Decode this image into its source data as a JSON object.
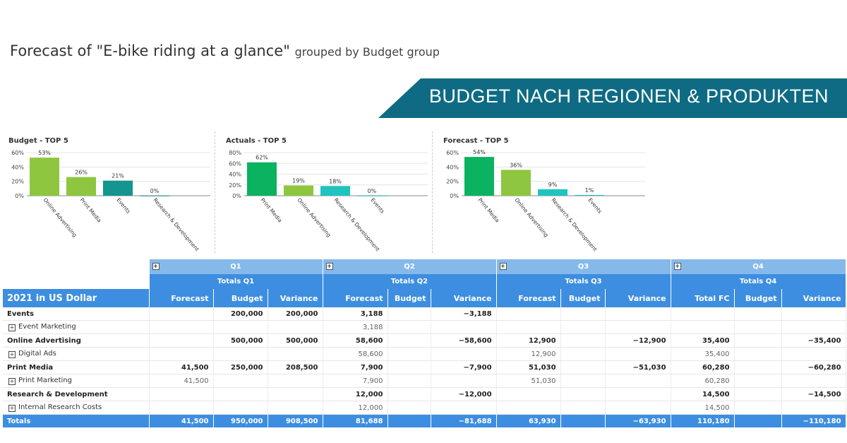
{
  "title": {
    "main": "Forecast of \"E-bike riding at a glance\"",
    "sub": "grouped by Budget group"
  },
  "banner": "BUDGET NACH REGIONEN & PRODUKTEN",
  "chart_data": [
    {
      "type": "bar",
      "title": "Budget - TOP 5",
      "ylim": [
        0,
        60
      ],
      "yticks": [
        "0%",
        "20%",
        "40%",
        "60%"
      ],
      "categories": [
        "Online Advertising",
        "Print Media",
        "Events",
        "Research & Development"
      ],
      "values": [
        53,
        26,
        21,
        0
      ],
      "labels": [
        "53%",
        "26%",
        "21%",
        "0%"
      ],
      "colors": [
        "#8ec63f",
        "#8ec63f",
        "#14958f",
        "#14958f"
      ]
    },
    {
      "type": "bar",
      "title": "Actuals - TOP 5",
      "ylim": [
        0,
        80
      ],
      "yticks": [
        "0%",
        "20%",
        "40%",
        "60%",
        "80%"
      ],
      "categories": [
        "Print Media",
        "Online Advertising",
        "Research & Development",
        "Events"
      ],
      "values": [
        62,
        19,
        18,
        0
      ],
      "labels": [
        "62%",
        "19%",
        "18%",
        "0%"
      ],
      "colors": [
        "#0bb260",
        "#8ec63f",
        "#1ec4c0",
        "#1ec4c0"
      ]
    },
    {
      "type": "bar",
      "title": "Forecast - TOP 5",
      "ylim": [
        0,
        60
      ],
      "yticks": [
        "0%",
        "20%",
        "40%",
        "60%"
      ],
      "categories": [
        "Print Media",
        "Online Advertising",
        "Research & Development",
        "Events"
      ],
      "values": [
        54,
        36,
        9,
        1
      ],
      "labels": [
        "54%",
        "36%",
        "9%",
        "1%"
      ],
      "colors": [
        "#0bb260",
        "#8ec63f",
        "#1ec4c0",
        "#1ec4c0"
      ]
    }
  ],
  "table": {
    "quarters": [
      "Q1",
      "Q2",
      "Q3",
      "Q4"
    ],
    "totals": [
      "Totals Q1",
      "Totals Q2",
      "Totals Q3",
      "Totals Q4"
    ],
    "row_header": "2021 in US Dollar",
    "cols": {
      "q1": [
        "Forecast",
        "Budget",
        "Variance"
      ],
      "q2": [
        "Forecast",
        "Budget",
        "Variance"
      ],
      "q3": [
        "Forecast",
        "Budget",
        "Variance"
      ],
      "q4": [
        "Total FC",
        "Budget",
        "Variance"
      ]
    },
    "rows": [
      {
        "label": "Events",
        "cells": [
          "",
          "200,000",
          "200,000",
          "3,188",
          "",
          "−3,188",
          "",
          "",
          "",
          "",
          "",
          ""
        ]
      },
      {
        "label": "Event Marketing",
        "cells": [
          "",
          "",
          "",
          "3,188",
          "",
          "",
          "",
          "",
          "",
          "",
          "",
          ""
        ]
      },
      {
        "label": "Online Advertising",
        "cells": [
          "",
          "500,000",
          "500,000",
          "58,600",
          "",
          "−58,600",
          "12,900",
          "",
          "−12,900",
          "35,400",
          "",
          "−35,400"
        ]
      },
      {
        "label": "Digital Ads",
        "cells": [
          "",
          "",
          "",
          "58,600",
          "",
          "",
          "12,900",
          "",
          "",
          "35,400",
          "",
          ""
        ]
      },
      {
        "label": "Print Media",
        "cells": [
          "41,500",
          "250,000",
          "208,500",
          "7,900",
          "",
          "−7,900",
          "51,030",
          "",
          "−51,030",
          "60,280",
          "",
          "−60,280"
        ]
      },
      {
        "label": "Print Marketing",
        "cells": [
          "41,500",
          "",
          "",
          "7,900",
          "",
          "",
          "51,030",
          "",
          "",
          "60,280",
          "",
          ""
        ]
      },
      {
        "label": "Research & Development",
        "cells": [
          "",
          "",
          "",
          "12,000",
          "",
          "−12,000",
          "",
          "",
          "",
          "14,500",
          "",
          "−14,500"
        ]
      },
      {
        "label": "Internal Research Costs",
        "cells": [
          "",
          "",
          "",
          "12,000",
          "",
          "",
          "",
          "",
          "",
          "14,500",
          "",
          ""
        ]
      }
    ],
    "total_row": {
      "label": "Totals",
      "cells": [
        "41,500",
        "950,000",
        "908,500",
        "81,688",
        "",
        "−81,688",
        "63,930",
        "",
        "−63,930",
        "110,180",
        "",
        "−110,180"
      ]
    }
  },
  "colors": {
    "banner": "#0e6b83",
    "header_blue": "#3d8ee0",
    "quarter_blue": "#85b9ea"
  }
}
